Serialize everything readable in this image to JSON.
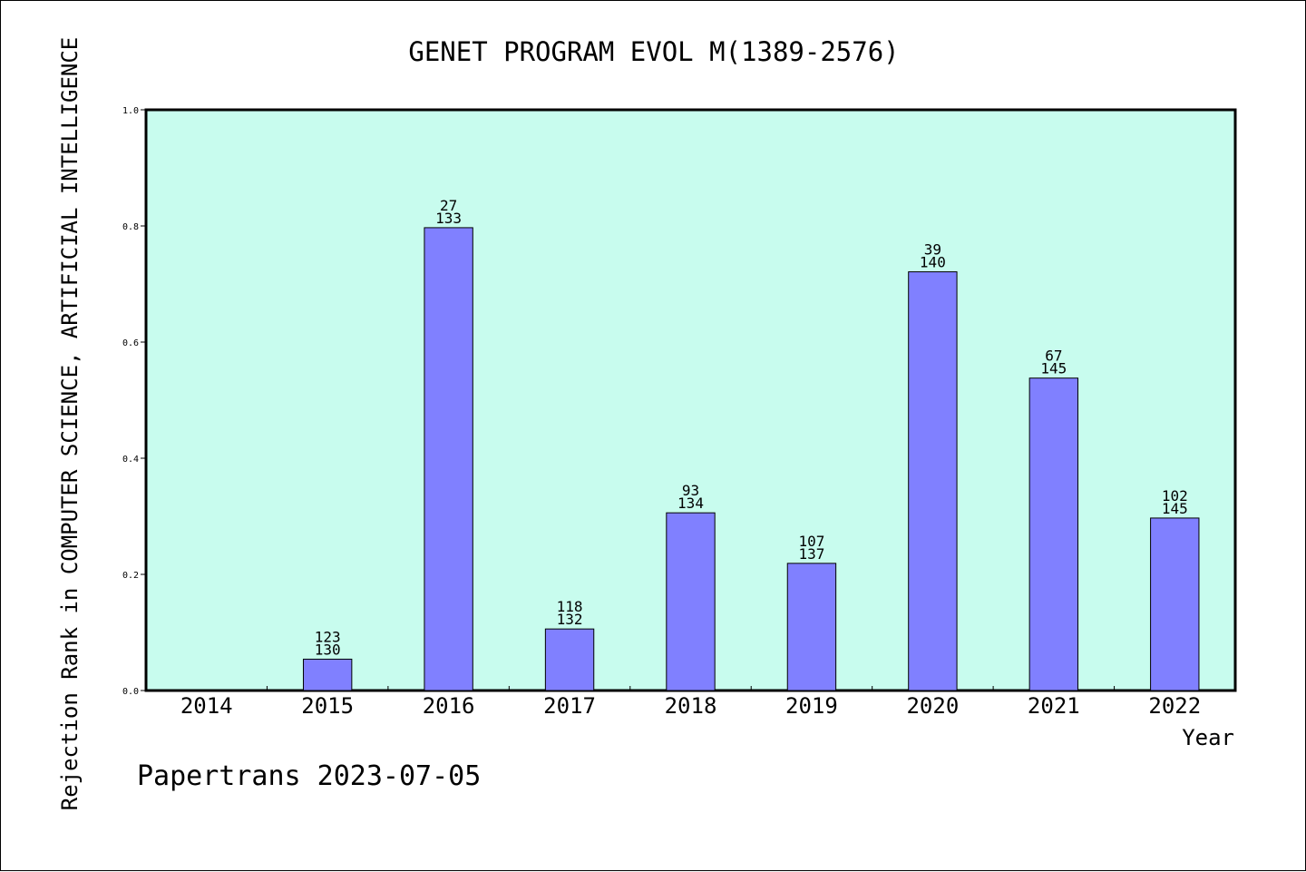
{
  "chart_data": {
    "type": "bar",
    "title": "GENET PROGRAM EVOL M(1389-2576)",
    "xlabel": "Year",
    "ylabel": "Rejection Rank in COMPUTER SCIENCE, ARTIFICIAL INTELLIGENCE",
    "ylim": [
      0,
      1.0
    ],
    "yticks": [
      0.0,
      0.2,
      0.4,
      0.6,
      0.8,
      1.0
    ],
    "ytick_labels": [
      "0.0",
      "0.2",
      "0.4",
      "0.6",
      "0.8",
      "1.0"
    ],
    "categories": [
      "2014",
      "2015",
      "2016",
      "2017",
      "2018",
      "2019",
      "2020",
      "2021",
      "2022"
    ],
    "values": [
      null,
      0.054,
      0.797,
      0.106,
      0.306,
      0.219,
      0.721,
      0.538,
      0.297
    ],
    "labels": [
      null,
      [
        "123",
        "130"
      ],
      [
        "27",
        "133"
      ],
      [
        "118",
        "132"
      ],
      [
        "93",
        "134"
      ],
      [
        "107",
        "137"
      ],
      [
        "39",
        "140"
      ],
      [
        "67",
        "145"
      ],
      [
        "102",
        "145"
      ]
    ],
    "grid": false,
    "colors": {
      "plot_background": "#c8fcee",
      "bar_fill": "#8080ff",
      "bar_stroke": "#000000"
    }
  },
  "footer": "Papertrans 2023-07-05"
}
